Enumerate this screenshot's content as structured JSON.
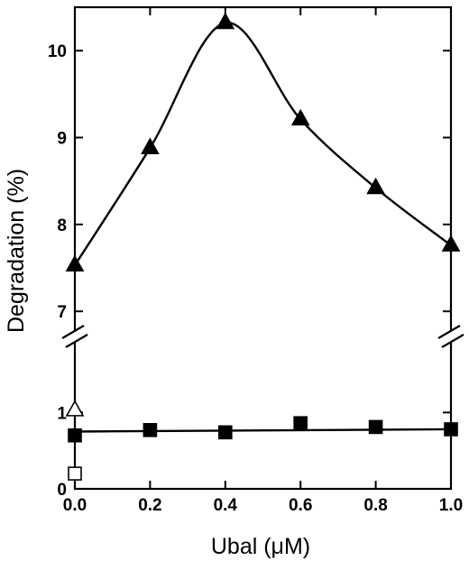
{
  "chart_data": {
    "type": "scatter",
    "xlabel": "Ubal (μM)",
    "ylabel": "Degradation (%)",
    "xlim": [
      0,
      1
    ],
    "x_ticks": [
      "0.0",
      "0.2",
      "0.4",
      "0.6",
      "0.8",
      "1.0"
    ],
    "x_tick_values": [
      0,
      0.2,
      0.4,
      0.6,
      0.8,
      1.0
    ],
    "axis_break": true,
    "y_segments": [
      {
        "ylim": [
          0,
          1.5
        ],
        "ticks": [
          "0",
          "1"
        ],
        "tick_values": [
          0,
          1
        ]
      },
      {
        "ylim": [
          6.95,
          10.5
        ],
        "ticks": [
          "7",
          "8",
          "9",
          "10"
        ],
        "tick_values": [
          7,
          8,
          9,
          10
        ]
      }
    ],
    "grid": false,
    "series": [
      {
        "marker": "filled-triangle",
        "line": "smooth",
        "x": [
          0.0,
          0.2,
          0.4,
          0.6,
          0.8,
          1.0
        ],
        "y": [
          7.53,
          8.88,
          10.32,
          9.21,
          8.42,
          7.76
        ]
      },
      {
        "marker": "filled-square",
        "line": "linear-fit",
        "fit": [
          0.75,
          0.78
        ],
        "x": [
          0.0,
          0.2,
          0.4,
          0.6,
          0.8,
          1.0
        ],
        "y": [
          0.7,
          0.77,
          0.74,
          0.86,
          0.81,
          0.78
        ]
      },
      {
        "marker": "open-triangle",
        "line": "none",
        "x": [
          0.0
        ],
        "y": [
          1.03
        ]
      },
      {
        "marker": "open-square",
        "line": "none",
        "x": [
          0.0
        ],
        "y": [
          0.2
        ]
      }
    ],
    "colors": {
      "ink": "#000000",
      "background": "#ffffff"
    }
  }
}
